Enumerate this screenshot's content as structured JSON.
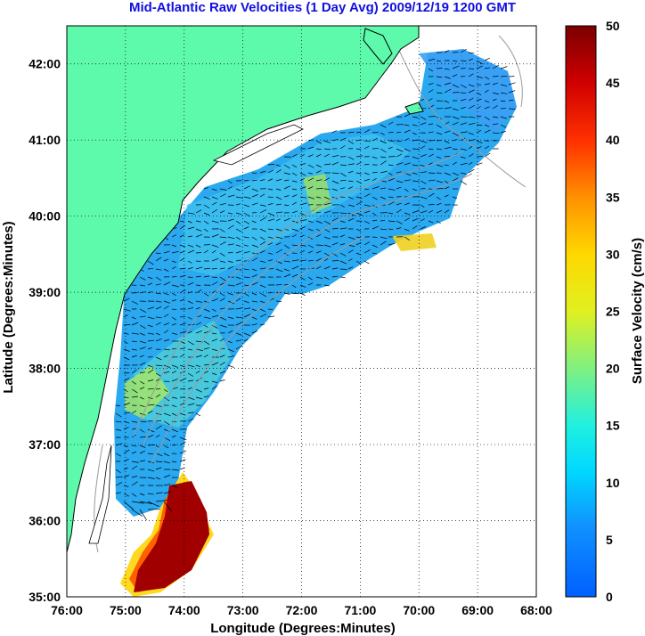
{
  "title": "Mid-Atlantic Raw Velocities (1 Day Avg) 2009/12/19 1200 GMT",
  "map": {
    "xlabel": "Longitude (Degrees:Minutes)",
    "ylabel": "Latitude (Degrees:Minutes)",
    "x_ticks": [
      "76:00",
      "75:00",
      "74:00",
      "73:00",
      "72:00",
      "71:00",
      "70:00",
      "69:00",
      "68:00"
    ],
    "y_ticks": [
      "35:00",
      "36:00",
      "37:00",
      "38:00",
      "39:00",
      "40:00",
      "41:00",
      "42:00"
    ],
    "x_range_deg_west": [
      76,
      68
    ],
    "y_range_deg_north": [
      35,
      42.5
    ],
    "grid": "dotted",
    "land_color": "#5efaac",
    "coast_color": "#000000",
    "bathymetry_color": "#9a9a9a"
  },
  "colorbar": {
    "label": "Surface Velocity (cm/s)",
    "ticks": [
      "0",
      "5",
      "10",
      "15",
      "20",
      "25",
      "30",
      "35",
      "40",
      "45",
      "50"
    ],
    "min": 0,
    "max": 50,
    "colormap": "jet"
  }
}
